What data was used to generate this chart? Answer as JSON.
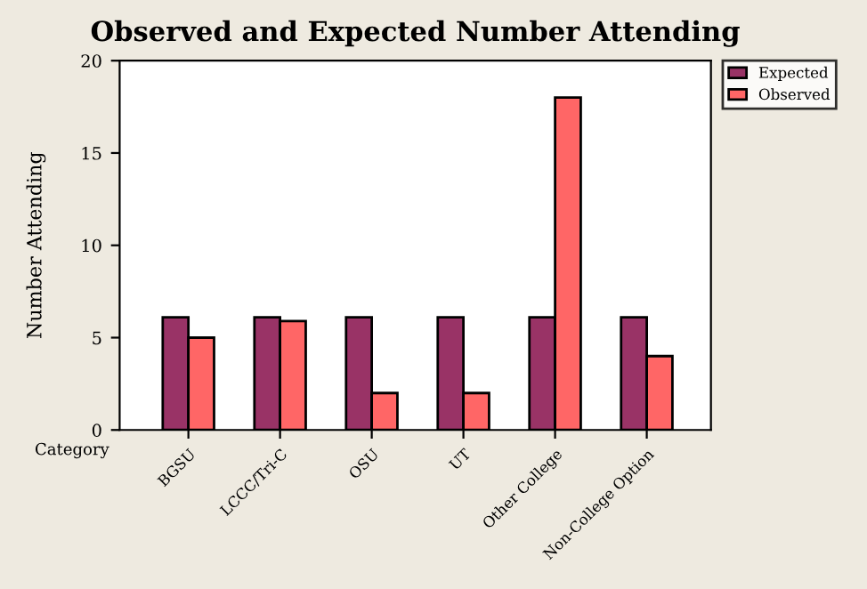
{
  "chart_data": {
    "type": "bar",
    "title": "Observed and Expected Number Attending",
    "xlabel": "Category",
    "ylabel": "Number Attending",
    "categories": [
      "BGSU",
      "LCCC/Tri-C",
      "OSU",
      "UT",
      "Other College",
      "Non-College Option"
    ],
    "series": [
      {
        "name": "Expected",
        "color": "#993366",
        "values": [
          6.1,
          6.1,
          6.1,
          6.1,
          6.1,
          6.1
        ]
      },
      {
        "name": "Observed",
        "color": "#ff6666",
        "values": [
          5,
          5.9,
          2,
          2,
          18,
          4
        ]
      }
    ],
    "ylim": [
      0,
      20
    ],
    "yticks": [
      0,
      5,
      10,
      15,
      20
    ],
    "grid": false,
    "legend": "top right"
  }
}
